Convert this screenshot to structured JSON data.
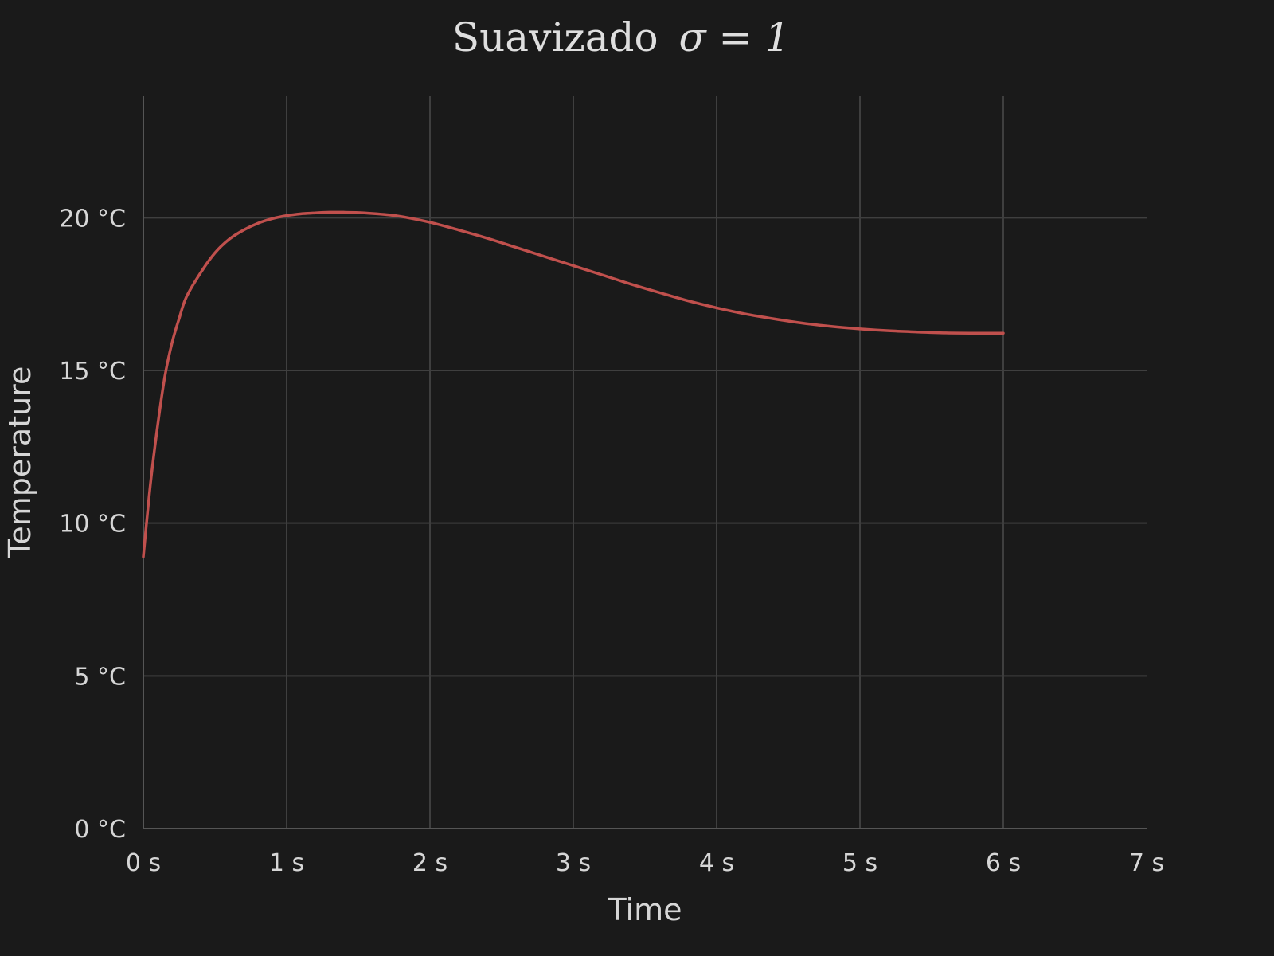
{
  "chart_data": {
    "type": "line",
    "title": "Suavizado",
    "title_math": "σ = 1",
    "xlabel": "Time",
    "ylabel": "Temperature",
    "xlim": [
      0,
      7
    ],
    "ylim": [
      0,
      24
    ],
    "x_ticks": [
      0,
      1,
      2,
      3,
      4,
      5,
      6,
      7
    ],
    "x_tick_labels": [
      "0 s",
      "1 s",
      "2 s",
      "3 s",
      "4 s",
      "5 s",
      "6 s",
      "7 s"
    ],
    "y_ticks": [
      0,
      5,
      10,
      15,
      20
    ],
    "y_tick_labels": [
      "0 °C",
      "5 °C",
      "10 °C",
      "15 °C",
      "20 °C"
    ],
    "grid": true,
    "legend": "none",
    "series": [
      {
        "color": "#c0504d",
        "x": [
          0,
          0.05,
          0.1,
          0.15,
          0.2,
          0.25,
          0.3,
          0.4,
          0.5,
          0.6,
          0.7,
          0.8,
          0.9,
          1.0,
          1.1,
          1.2,
          1.3,
          1.4,
          1.5,
          1.6,
          1.7,
          1.8,
          2.0,
          2.2,
          2.4,
          2.6,
          2.8,
          3.0,
          3.2,
          3.4,
          3.6,
          3.8,
          4.0,
          4.2,
          4.4,
          4.6,
          4.8,
          5.0,
          5.2,
          5.4,
          5.6,
          5.8,
          6.0
        ],
        "y": [
          8.9,
          11.3,
          13.2,
          14.8,
          15.9,
          16.7,
          17.4,
          18.2,
          18.85,
          19.3,
          19.6,
          19.82,
          19.97,
          20.07,
          20.13,
          20.16,
          20.18,
          20.18,
          20.17,
          20.14,
          20.1,
          20.04,
          19.85,
          19.6,
          19.33,
          19.03,
          18.73,
          18.43,
          18.13,
          17.83,
          17.55,
          17.28,
          17.05,
          16.85,
          16.69,
          16.55,
          16.44,
          16.36,
          16.3,
          16.26,
          16.23,
          16.22,
          16.22
        ]
      }
    ]
  }
}
